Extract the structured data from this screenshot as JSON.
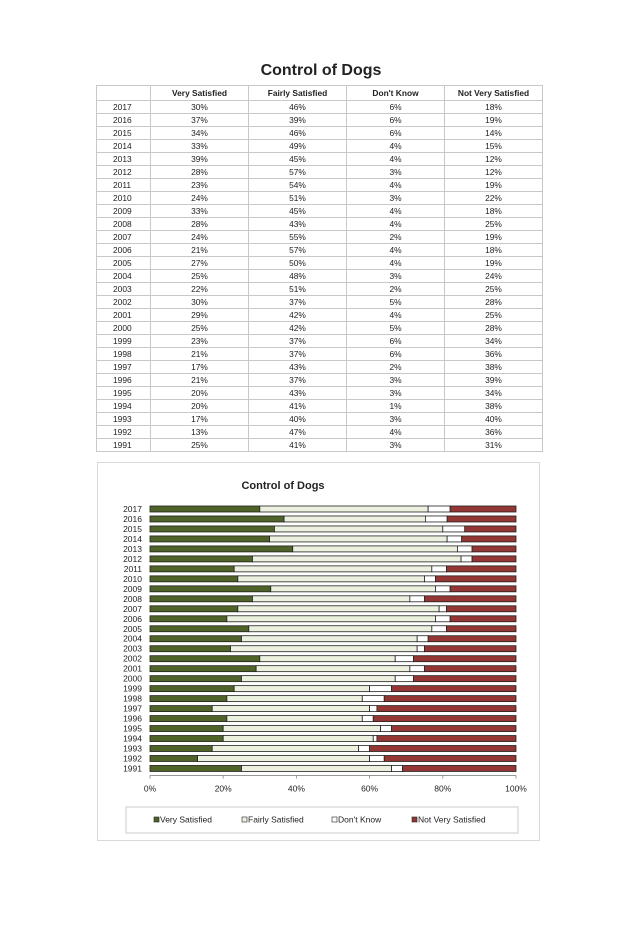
{
  "page_title": "Control of Dogs",
  "table": {
    "headers": [
      "",
      "Very Satisfied",
      "Fairly Satisfied",
      "Don't Know",
      "Not Very Satisfied"
    ],
    "rows": [
      [
        "2017",
        "30%",
        "46%",
        "6%",
        "18%"
      ],
      [
        "2016",
        "37%",
        "39%",
        "6%",
        "19%"
      ],
      [
        "2015",
        "34%",
        "46%",
        "6%",
        "14%"
      ],
      [
        "2014",
        "33%",
        "49%",
        "4%",
        "15%"
      ],
      [
        "2013",
        "39%",
        "45%",
        "4%",
        "12%"
      ],
      [
        "2012",
        "28%",
        "57%",
        "3%",
        "12%"
      ],
      [
        "2011",
        "23%",
        "54%",
        "4%",
        "19%"
      ],
      [
        "2010",
        "24%",
        "51%",
        "3%",
        "22%"
      ],
      [
        "2009",
        "33%",
        "45%",
        "4%",
        "18%"
      ],
      [
        "2008",
        "28%",
        "43%",
        "4%",
        "25%"
      ],
      [
        "2007",
        "24%",
        "55%",
        "2%",
        "19%"
      ],
      [
        "2006",
        "21%",
        "57%",
        "4%",
        "18%"
      ],
      [
        "2005",
        "27%",
        "50%",
        "4%",
        "19%"
      ],
      [
        "2004",
        "25%",
        "48%",
        "3%",
        "24%"
      ],
      [
        "2003",
        "22%",
        "51%",
        "2%",
        "25%"
      ],
      [
        "2002",
        "30%",
        "37%",
        "5%",
        "28%"
      ],
      [
        "2001",
        "29%",
        "42%",
        "4%",
        "25%"
      ],
      [
        "2000",
        "25%",
        "42%",
        "5%",
        "28%"
      ],
      [
        "1999",
        "23%",
        "37%",
        "6%",
        "34%"
      ],
      [
        "1998",
        "21%",
        "37%",
        "6%",
        "36%"
      ],
      [
        "1997",
        "17%",
        "43%",
        "2%",
        "38%"
      ],
      [
        "1996",
        "21%",
        "37%",
        "3%",
        "39%"
      ],
      [
        "1995",
        "20%",
        "43%",
        "3%",
        "34%"
      ],
      [
        "1994",
        "20%",
        "41%",
        "1%",
        "38%"
      ],
      [
        "1993",
        "17%",
        "40%",
        "3%",
        "40%"
      ],
      [
        "1992",
        "13%",
        "47%",
        "4%",
        "36%"
      ],
      [
        "1991",
        "25%",
        "41%",
        "3%",
        "31%"
      ]
    ]
  },
  "chart_data": {
    "type": "bar",
    "orientation": "horizontal",
    "stacked": "percent",
    "title": "Control of Dogs",
    "categories": [
      "2017",
      "2016",
      "2015",
      "2014",
      "2013",
      "2012",
      "2011",
      "2010",
      "2009",
      "2008",
      "2007",
      "2006",
      "2005",
      "2004",
      "2003",
      "2002",
      "2001",
      "2000",
      "1999",
      "1998",
      "1997",
      "1996",
      "1995",
      "1994",
      "1993",
      "1992",
      "1991"
    ],
    "series": [
      {
        "name": "Very Satisfied",
        "color": "#4f6228",
        "values": [
          30,
          37,
          34,
          33,
          39,
          28,
          23,
          24,
          33,
          28,
          24,
          21,
          27,
          25,
          22,
          30,
          29,
          25,
          23,
          21,
          17,
          21,
          20,
          20,
          17,
          13,
          25
        ]
      },
      {
        "name": "Fairly Satisfied",
        "color": "#ebf1de",
        "values": [
          46,
          39,
          46,
          49,
          45,
          57,
          54,
          51,
          45,
          43,
          55,
          57,
          50,
          48,
          51,
          37,
          42,
          42,
          37,
          37,
          43,
          37,
          43,
          41,
          40,
          47,
          41
        ]
      },
      {
        "name": "Don't Know",
        "color": "#ffffff",
        "values": [
          6,
          6,
          6,
          4,
          4,
          3,
          4,
          3,
          4,
          4,
          2,
          4,
          4,
          3,
          2,
          5,
          4,
          5,
          6,
          6,
          2,
          3,
          3,
          1,
          3,
          4,
          3
        ]
      },
      {
        "name": "Not Very Satisfied",
        "color": "#943634",
        "values": [
          18,
          19,
          14,
          15,
          12,
          12,
          19,
          22,
          18,
          25,
          19,
          18,
          19,
          24,
          25,
          28,
          25,
          28,
          34,
          36,
          38,
          39,
          34,
          38,
          40,
          36,
          31
        ]
      }
    ],
    "x_ticks": [
      "0%",
      "20%",
      "40%",
      "60%",
      "80%",
      "100%"
    ],
    "xlim": [
      0,
      100
    ],
    "legend_position": "bottom",
    "grid": false
  }
}
